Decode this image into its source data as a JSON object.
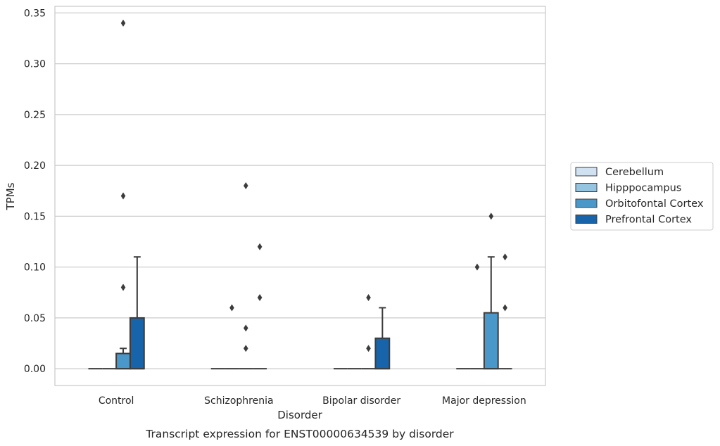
{
  "chart_data": {
    "type": "box",
    "caption": "Transcript expression for ENST00000634539 by disorder",
    "xlabel": "Disorder",
    "ylabel": "TPMs",
    "ylim": [
      -0.0165,
      0.3565
    ],
    "yticks": [
      "0.00",
      "0.05",
      "0.10",
      "0.15",
      "0.20",
      "0.25",
      "0.30",
      "0.35"
    ],
    "grid": true,
    "legend_position": "right",
    "categories": [
      "Control",
      "Schizophrenia",
      "Bipolar disorder",
      "Major depression"
    ],
    "series": [
      {
        "name": "Cerebellum",
        "color": "#d0e1f2",
        "boxes": [
          {
            "q1": 0,
            "median": 0,
            "q3": 0,
            "whislo": 0,
            "whishi": 0,
            "fliers": []
          },
          {
            "q1": 0,
            "median": 0,
            "q3": 0,
            "whislo": 0,
            "whishi": 0,
            "fliers": []
          },
          {
            "q1": 0,
            "median": 0,
            "q3": 0,
            "whislo": 0,
            "whishi": 0,
            "fliers": []
          },
          {
            "q1": 0,
            "median": 0,
            "q3": 0,
            "whislo": 0,
            "whishi": 0,
            "fliers": []
          }
        ]
      },
      {
        "name": "Hipppocampus",
        "color": "#94c4df",
        "boxes": [
          {
            "q1": 0,
            "median": 0,
            "q3": 0,
            "whislo": 0,
            "whishi": 0,
            "fliers": []
          },
          {
            "q1": 0,
            "median": 0,
            "q3": 0,
            "whislo": 0,
            "whishi": 0,
            "fliers": [
              0.06
            ]
          },
          {
            "q1": 0,
            "median": 0,
            "q3": 0,
            "whislo": 0,
            "whishi": 0,
            "fliers": []
          },
          {
            "q1": 0,
            "median": 0,
            "q3": 0,
            "whislo": 0,
            "whishi": 0,
            "fliers": [
              0.1
            ]
          }
        ]
      },
      {
        "name": "Orbitofontal Cortex",
        "color": "#4a98c9",
        "boxes": [
          {
            "q1": 0,
            "median": 0,
            "q3": 0.015,
            "whislo": 0,
            "whishi": 0.02,
            "fliers": [
              0.08,
              0.17,
              0.34
            ]
          },
          {
            "q1": 0,
            "median": 0,
            "q3": 0,
            "whislo": 0,
            "whishi": 0,
            "fliers": [
              0.02,
              0.04,
              0.18
            ]
          },
          {
            "q1": 0,
            "median": 0,
            "q3": 0,
            "whislo": 0,
            "whishi": 0,
            "fliers": [
              0.02,
              0.07
            ]
          },
          {
            "q1": 0,
            "median": 0,
            "q3": 0.055,
            "whislo": 0,
            "whishi": 0.11,
            "fliers": [
              0.15
            ]
          }
        ]
      },
      {
        "name": "Prefrontal Cortex",
        "color": "#1764ab",
        "boxes": [
          {
            "q1": 0,
            "median": 0,
            "q3": 0.05,
            "whislo": 0,
            "whishi": 0.11,
            "fliers": []
          },
          {
            "q1": 0,
            "median": 0,
            "q3": 0,
            "whislo": 0,
            "whishi": 0,
            "fliers": [
              0.07,
              0.12
            ]
          },
          {
            "q1": 0,
            "median": 0,
            "q3": 0.03,
            "whislo": 0,
            "whishi": 0.06,
            "fliers": []
          },
          {
            "q1": 0,
            "median": 0,
            "q3": 0,
            "whislo": 0,
            "whishi": 0,
            "fliers": [
              0.06,
              0.11
            ]
          }
        ]
      }
    ]
  }
}
